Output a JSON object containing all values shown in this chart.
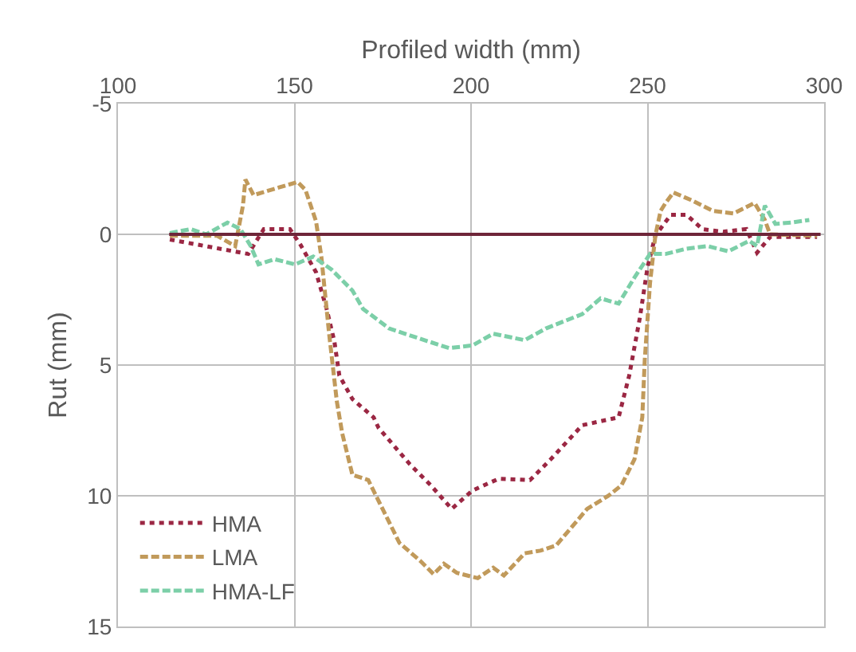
{
  "chart_data": {
    "type": "line",
    "xlabel": "Profiled width (mm)",
    "ylabel": "Rut (mm)",
    "xlim": [
      100,
      300
    ],
    "xticks": [
      100,
      150,
      200,
      250,
      300
    ],
    "ylim": [
      15,
      -5
    ],
    "yticks": [
      -5,
      0,
      5,
      10,
      15
    ],
    "grid": true,
    "legend": "bottom left",
    "marker": "none",
    "series": [
      {
        "name": "HMA",
        "color": "#9b2743",
        "line_style": "dotted",
        "x": [
          114.7,
          136.9,
          141.3,
          148.7,
          151.7,
          156.1,
          159,
          161.3,
          162.7,
          166.4,
          172.4,
          173.8,
          182.7,
          188.6,
          194.5,
          200.4,
          207.8,
          216.7,
          222.6,
          231.5,
          241.8,
          244.8,
          247.8,
          250,
          252.2,
          256.6,
          261,
          265.5,
          271.4,
          278,
          281,
          284.7,
          298
        ],
        "values": [
          0.2,
          0.75,
          -0.2,
          -0.2,
          0.4,
          1.45,
          2.8,
          4.1,
          5.4,
          6.3,
          7.0,
          7.4,
          8.8,
          9.6,
          10.5,
          9.8,
          9.35,
          9.4,
          8.6,
          7.3,
          7.0,
          5.4,
          3.2,
          1.25,
          0.05,
          -0.75,
          -0.75,
          -0.2,
          -0.1,
          -0.2,
          0.7,
          0.1,
          0.1
        ]
      },
      {
        "name": "LMA",
        "color": "#c19a5b",
        "line_style": "dashed",
        "x": [
          114.7,
          128,
          133.2,
          135.4,
          136.1,
          138.4,
          145.8,
          150.9,
          153.1,
          156.1,
          157.6,
          159.8,
          162,
          163.5,
          166.4,
          170.9,
          175.3,
          179.7,
          185.7,
          189.4,
          192.3,
          196,
          201.9,
          206.3,
          209.3,
          215.2,
          219.6,
          224.1,
          228.5,
          232.9,
          238.9,
          242.6,
          246.3,
          248.5,
          249.2,
          250.7,
          252.2,
          253.7,
          255.1,
          257.3,
          262.5,
          268.4,
          274.4,
          280.3,
          283.2,
          284.7,
          298
        ],
        "values": [
          0.05,
          0.05,
          0.45,
          -1.1,
          -2.1,
          -1.5,
          -1.8,
          -2.0,
          -1.7,
          -0.5,
          0.85,
          3.8,
          6.4,
          7.6,
          9.2,
          9.4,
          10.6,
          11.8,
          12.5,
          13.0,
          12.6,
          12.95,
          13.15,
          12.75,
          13.05,
          12.2,
          12.1,
          11.9,
          11.2,
          10.5,
          10.0,
          9.6,
          8.6,
          7.0,
          4.8,
          1.85,
          0.05,
          -0.9,
          -1.2,
          -1.6,
          -1.3,
          -0.9,
          -0.8,
          -1.2,
          -0.55,
          0.0,
          0.05
        ]
      },
      {
        "name": "HMA-LF",
        "color": "#7ccfa8",
        "line_style": "dashed",
        "x": [
          114.7,
          120.6,
          125,
          131,
          134.7,
          137.6,
          139.8,
          144.3,
          150.2,
          155.3,
          160.5,
          166.4,
          169.4,
          176.8,
          185.7,
          193.8,
          200.4,
          206.3,
          215.2,
          221.2,
          231.5,
          236.7,
          241.8,
          246.3,
          250.7,
          255.1,
          261,
          267,
          272.9,
          278.8,
          281,
          283.2,
          286.2,
          290.6,
          295.8
        ],
        "values": [
          -0.05,
          -0.2,
          0.0,
          -0.45,
          -0.2,
          0.45,
          1.15,
          0.95,
          1.15,
          0.85,
          1.35,
          2.15,
          2.85,
          3.6,
          4.0,
          4.35,
          4.25,
          3.8,
          4.05,
          3.6,
          3.05,
          2.45,
          2.65,
          1.65,
          0.75,
          0.75,
          0.55,
          0.45,
          0.65,
          0.25,
          0.45,
          -1.1,
          -0.4,
          -0.45,
          -0.55
        ]
      },
      {
        "color": "#6e2639",
        "line_style": "solid",
        "x": [
          114.5,
          299
        ],
        "values": [
          0,
          0
        ]
      }
    ]
  }
}
